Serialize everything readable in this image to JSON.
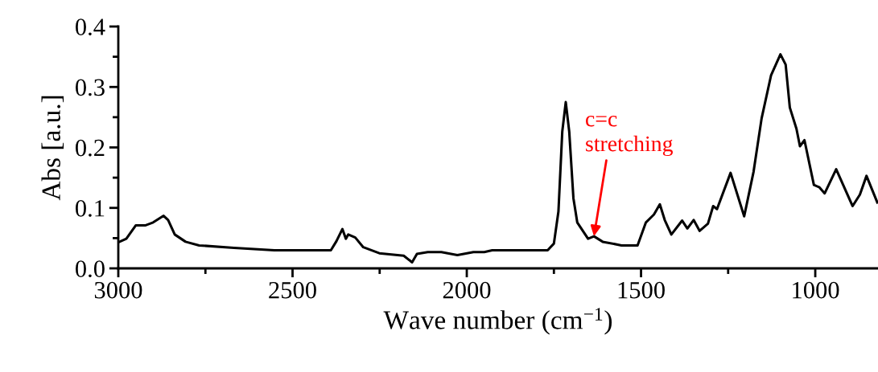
{
  "chart_data": {
    "type": "line",
    "xlabel": "Wave number (cm$^{−1}$)",
    "ylabel": "Abs [a.u.]",
    "xlim": [
      3000,
      820
    ],
    "xticks": [
      3000,
      2500,
      2000,
      1500,
      1000
    ],
    "ylim": [
      0,
      0.4
    ],
    "yticks": [
      {
        "value": 0,
        "label": "0.0"
      },
      0.1,
      0.2,
      0.3,
      0.4
    ],
    "marker": "none",
    "line_style": "solid",
    "annotations": [
      {
        "text": "c=c\nstretching",
        "x": 1635,
        "y": 0.053
      }
    ],
    "series": [
      {
        "color": "#000000",
        "x": [
          3000,
          2977,
          2950,
          2923,
          2900,
          2870,
          2857,
          2838,
          2807,
          2768,
          2668,
          2552,
          2390,
          2374,
          2357,
          2347,
          2340,
          2320,
          2297,
          2251,
          2181,
          2157,
          2143,
          2112,
          2073,
          2027,
          1981,
          1950,
          1927,
          1903,
          1768,
          1750,
          1737,
          1726,
          1716,
          1706,
          1694,
          1683,
          1652,
          1635,
          1610,
          1556,
          1510,
          1486,
          1463,
          1446,
          1432,
          1413,
          1382,
          1367,
          1349,
          1332,
          1308,
          1293,
          1282,
          1243,
          1204,
          1177,
          1154,
          1127,
          1100,
          1085,
          1073,
          1054,
          1044,
          1031,
          1004,
          988,
          973,
          940,
          893,
          872,
          853,
          822
        ],
        "values": [
          0.043,
          0.049,
          0.071,
          0.071,
          0.076,
          0.087,
          0.08,
          0.056,
          0.044,
          0.038,
          0.034,
          0.03,
          0.03,
          0.045,
          0.065,
          0.049,
          0.056,
          0.051,
          0.035,
          0.025,
          0.021,
          0.01,
          0.024,
          0.027,
          0.027,
          0.022,
          0.027,
          0.027,
          0.03,
          0.03,
          0.03,
          0.041,
          0.094,
          0.226,
          0.275,
          0.226,
          0.116,
          0.076,
          0.049,
          0.053,
          0.044,
          0.038,
          0.038,
          0.076,
          0.089,
          0.106,
          0.08,
          0.056,
          0.079,
          0.066,
          0.08,
          0.062,
          0.074,
          0.103,
          0.098,
          0.158,
          0.086,
          0.16,
          0.248,
          0.319,
          0.354,
          0.337,
          0.266,
          0.231,
          0.202,
          0.212,
          0.138,
          0.134,
          0.124,
          0.164,
          0.103,
          0.122,
          0.153,
          0.109
        ]
      }
    ]
  }
}
